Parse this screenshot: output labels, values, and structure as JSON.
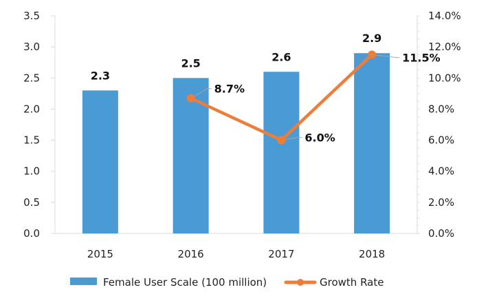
{
  "chart_data": {
    "type": "bar",
    "combo": "bar+line (dual axis)",
    "title": "",
    "categories": [
      "2015",
      "2016",
      "2017",
      "2018"
    ],
    "series": [
      {
        "name": "Female User Scale (100 million)",
        "type": "bar",
        "axis": "left",
        "values": [
          2.3,
          2.5,
          2.6,
          2.9
        ],
        "labels": [
          "2.3",
          "2.5",
          "2.6",
          "2.9"
        ],
        "color": "#4a9ad4"
      },
      {
        "name": "Growth Rate",
        "type": "line",
        "axis": "right",
        "values": [
          null,
          8.7,
          6.0,
          11.5
        ],
        "labels": [
          "",
          "8.7%",
          "6.0%",
          "11.5%"
        ],
        "color": "#ed7d3a"
      }
    ],
    "left_axis": {
      "ylim": [
        0,
        3.5
      ],
      "ticks": [
        "0.0",
        "0.5",
        "1.0",
        "1.5",
        "2.0",
        "2.5",
        "3.0",
        "3.5"
      ],
      "tick_values": [
        0,
        0.5,
        1.0,
        1.5,
        2.0,
        2.5,
        3.0,
        3.5
      ]
    },
    "right_axis": {
      "ylim": [
        0,
        14
      ],
      "ticks": [
        "0.0%",
        "2.0%",
        "4.0%",
        "6.0%",
        "8.0%",
        "10.0%",
        "12.0%",
        "14.0%"
      ],
      "tick_values": [
        0,
        2,
        4,
        6,
        8,
        10,
        12,
        14
      ]
    },
    "xlabel": "",
    "ylabel": "",
    "grid": false,
    "legend": {
      "position": "bottom",
      "entries": [
        "Female User Scale (100 million)",
        "Growth Rate"
      ]
    },
    "colors": {
      "axis": "#d9d9d9",
      "leader_line": "#a6a6a6"
    }
  }
}
